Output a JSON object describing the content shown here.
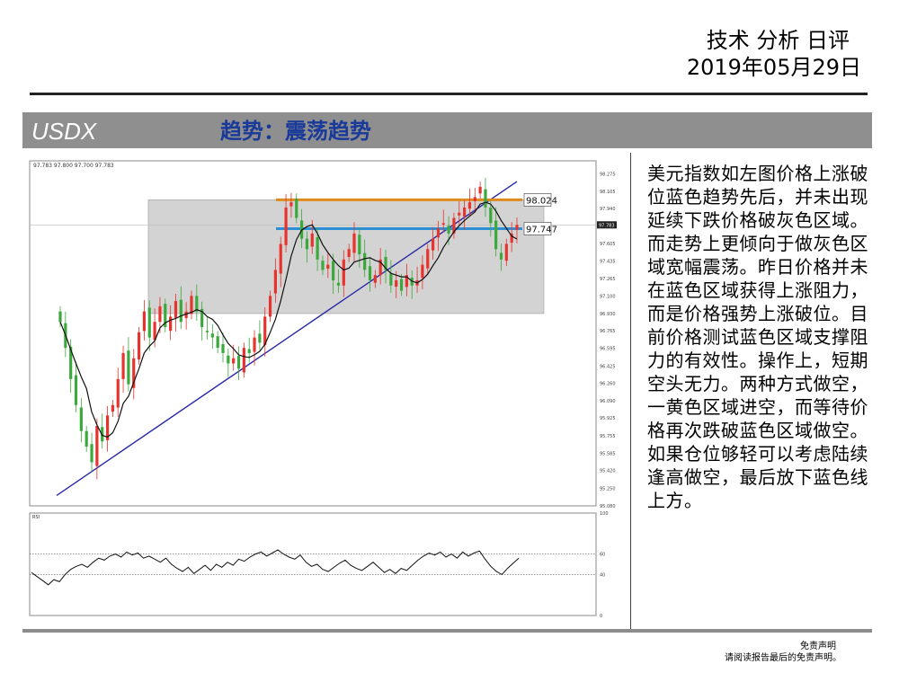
{
  "header": {
    "title": "技术 分析 日评",
    "date": "2019年05月29日"
  },
  "banner": {
    "symbol": "USDX",
    "trend": "趋势：震荡趋势"
  },
  "commentary": "美元指数如左图价格上涨破位蓝色趋势先后，并未出现延续下跌价格破灰色区域。而走势上更倾向于做灰色区域宽幅震荡。昨日价格并未在蓝色区域获得上涨阻力，而是价格强势上涨破位。目前价格测试蓝色区域支撑阻力的有效性。操作上，短期空头无力。两种方式做空，一黄色区域进空，而等待价格再次跌破蓝色区域做空。如果仓位够轻可以考虑陆续逢高做空，最后放下蓝色线上方。",
  "footer": {
    "disclaimer_title": "免责声明",
    "disclaimer_text": "请阅读报告最后的免责声明。"
  },
  "chart_data": {
    "type": "candlestick",
    "ohlc_readout": "97.783 97.800 97.700 97.783",
    "price_axis": {
      "ticks": [
        "98.275",
        "98.105",
        "97.940",
        "97.775",
        "97.605",
        "97.435",
        "97.265",
        "97.100",
        "96.930",
        "96.765",
        "96.595",
        "96.425",
        "96.260",
        "96.090",
        "95.925",
        "95.755",
        "95.585",
        "95.420",
        "95.250",
        "95.080"
      ],
      "range": [
        95.08,
        98.33
      ]
    },
    "current_price_label": "97.783",
    "levels": [
      {
        "name": "orange",
        "value": 98.024,
        "label": "98.024",
        "color": "#e08a1e"
      },
      {
        "name": "blue",
        "value": 97.747,
        "label": "97.747",
        "color": "#2d8fd6"
      }
    ],
    "gray_zone": {
      "high": 98.024,
      "low": 96.93,
      "color": "#d3d3d3"
    },
    "candle_colors": {
      "up": "#e8322c",
      "down": "#3aa83a"
    },
    "trendline": {
      "color": "#2a2aa8",
      "from": 95.18,
      "to": 98.2
    },
    "closes": [
      96.85,
      96.6,
      96.3,
      96.05,
      95.8,
      95.65,
      95.5,
      95.85,
      95.7,
      95.95,
      96.05,
      96.3,
      96.55,
      96.25,
      96.5,
      96.75,
      96.95,
      96.7,
      96.85,
      97.0,
      96.8,
      96.9,
      97.05,
      96.85,
      96.95,
      97.1,
      96.95,
      96.8,
      96.75,
      96.7,
      96.6,
      96.55,
      96.45,
      96.5,
      96.4,
      96.6,
      96.55,
      96.7,
      96.65,
      96.9,
      97.1,
      97.35,
      97.6,
      97.95,
      98.0,
      97.85,
      97.65,
      97.55,
      97.7,
      97.45,
      97.35,
      97.4,
      97.25,
      97.2,
      97.45,
      97.55,
      97.7,
      97.5,
      97.35,
      97.25,
      97.3,
      97.45,
      97.35,
      97.2,
      97.25,
      97.15,
      97.3,
      97.2,
      97.25,
      97.4,
      97.55,
      97.65,
      97.75,
      97.8,
      97.7,
      97.85,
      97.9,
      97.95,
      98.0,
      98.05,
      98.15,
      97.95,
      97.8,
      97.55,
      97.45,
      97.6,
      97.7,
      97.783
    ],
    "ma_color": "#111111",
    "rsi": {
      "label": "RSI",
      "axis_ticks": [
        "100",
        "60",
        "40",
        "0"
      ],
      "levels": [
        60,
        40
      ],
      "values": [
        42,
        38,
        34,
        30,
        35,
        33,
        40,
        45,
        48,
        50,
        47,
        52,
        56,
        54,
        58,
        60,
        57,
        62,
        59,
        61,
        56,
        58,
        55,
        52,
        56,
        50,
        46,
        43,
        47,
        41,
        45,
        49,
        44,
        50,
        47,
        52,
        49,
        55,
        53,
        57,
        60,
        62,
        58,
        61,
        64,
        60,
        57,
        55,
        59,
        52,
        48,
        50,
        45,
        43,
        47,
        51,
        54,
        49,
        46,
        44,
        48,
        52,
        47,
        42,
        45,
        41,
        46,
        44,
        49,
        54,
        58,
        61,
        59,
        62,
        57,
        60,
        56,
        62,
        58,
        61,
        63,
        55,
        48,
        43,
        40,
        46,
        51,
        56
      ]
    }
  }
}
